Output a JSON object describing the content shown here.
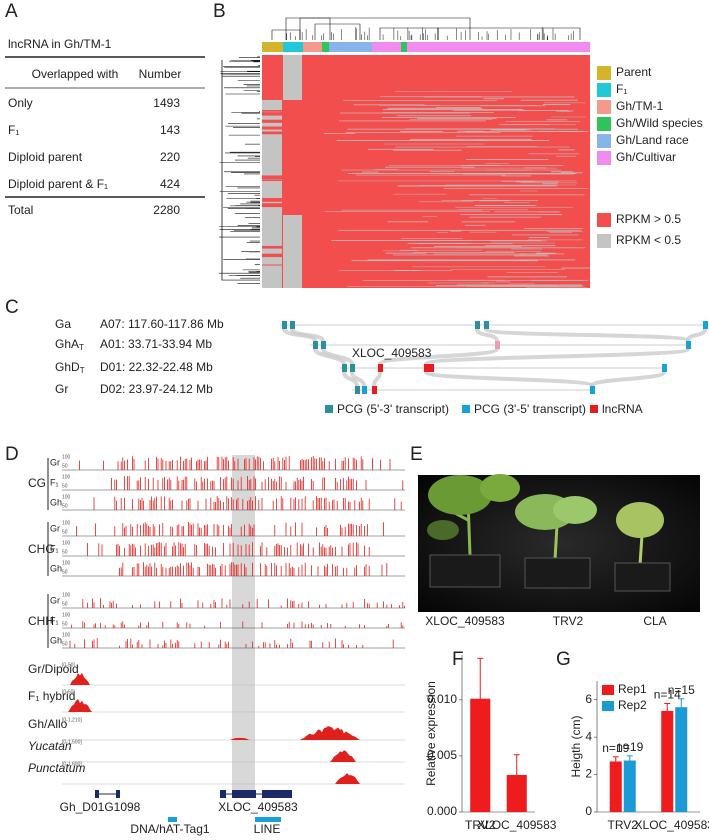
{
  "panel_labels": [
    "A",
    "B",
    "C",
    "D",
    "E",
    "F",
    "G"
  ],
  "panels": {
    "A": {
      "title": "lncRNA in Gh/TM-1",
      "header": [
        "Overlapped with",
        "Number"
      ],
      "rows": [
        [
          "Only",
          1493
        ],
        [
          "F₁",
          143
        ],
        [
          "Diploid parent",
          220
        ],
        [
          "Diploid parent & F₁",
          424
        ]
      ],
      "total": [
        "Total",
        2280
      ]
    },
    "B": {
      "groups": [
        {
          "name": "Parent",
          "color": "#d4b42a"
        },
        {
          "name": "F₁",
          "color": "#22c8d8"
        },
        {
          "name": "Gh/TM-1",
          "color": "#f49a8c"
        },
        {
          "name": "Gh/Wild species",
          "color": "#2ec45a"
        },
        {
          "name": "Gh/Land race",
          "color": "#88b4ec"
        },
        {
          "name": "Gh/Cultivar",
          "color": "#f08cf0"
        }
      ],
      "scale": [
        {
          "name": "RPKM > 0.5",
          "color": "#f24e4e"
        },
        {
          "name": "RPKM < 0.5",
          "color": "#c4c4c4"
        }
      ]
    },
    "C": {
      "rows": [
        {
          "species": "Ga",
          "sub": null,
          "region": "A07: 117.60-117.86 Mb"
        },
        {
          "species": "GhA",
          "sub": "T",
          "region": "A01: 33.71-33.94 Mb"
        },
        {
          "species": "GhD",
          "sub": "T",
          "region": "D01: 22.32-22.48 Mb"
        },
        {
          "species": "Gr",
          "sub": null,
          "region": "D02: 23.97-24.12 Mb"
        }
      ],
      "highlight": "XLOC_409583",
      "legend": [
        {
          "name": "PCG (5'-3' transcript)",
          "color": "#2a8fa0"
        },
        {
          "name": "PCG (3'-5' transcript)",
          "color": "#1aa0d8"
        },
        {
          "name": "lncRNA",
          "color": "#e81c1c"
        }
      ]
    },
    "D": {
      "contexts": [
        "CG",
        "CHG",
        "CHH"
      ],
      "samples": [
        "Gr",
        "F₁",
        "Gh"
      ],
      "scale": [
        "100",
        "50"
      ],
      "coverage": [
        {
          "name": "Gr/Dipoid",
          "range": "[0-50]"
        },
        {
          "name": "F₁ hybrid",
          "range": "[0-50]"
        },
        {
          "name": "Gh/Allo",
          "range": "[0-1,210]"
        },
        {
          "name": "Yucatan",
          "range": "[0-1,500]"
        },
        {
          "name": "Punctatum",
          "range": "[0-1,600]"
        }
      ],
      "genes": [
        "Gh_D01G1098",
        "XLOC_409583"
      ],
      "repeats": [
        "DNA/hAT-Tag1",
        "LINE"
      ]
    },
    "E": {
      "labels": [
        "XLOC_409583",
        "TRV2",
        "CLA"
      ]
    }
  },
  "chart_data": [
    {
      "type": "bar",
      "y_label": "Relative expression",
      "categories": [
        "TRV2",
        "XLOC_409583"
      ],
      "values": [
        0.0101,
        0.0033
      ],
      "errors": [
        0.0036,
        0.0018
      ],
      "color": "#ee1c1c",
      "ylim": [
        0,
        0.014
      ],
      "yticks": [
        {
          "value": 0,
          "label": "0.000"
        },
        {
          "value": 0.005,
          "label": "0.005"
        },
        {
          "value": 0.01,
          "label": "0.010"
        }
      ]
    },
    {
      "type": "bar",
      "y_label": "Heigth (cm)",
      "categories": [
        "TRV2",
        "XLOC_409583"
      ],
      "series": [
        {
          "name": "Rep1",
          "color": "#ee1c1c",
          "values": [
            2.7,
            5.4
          ],
          "errors": [
            0.25,
            0.4
          ],
          "labels": [
            "n=19",
            "n=14"
          ]
        },
        {
          "name": "Rep2",
          "color": "#1b9ad6",
          "values": [
            2.75,
            5.6
          ],
          "errors": [
            0.25,
            0.45
          ],
          "labels": [
            "n=19",
            "n=15"
          ]
        }
      ],
      "ylim": [
        0,
        7
      ],
      "yticks": [
        0,
        2,
        4,
        6
      ],
      "legend": "top-left"
    }
  ]
}
